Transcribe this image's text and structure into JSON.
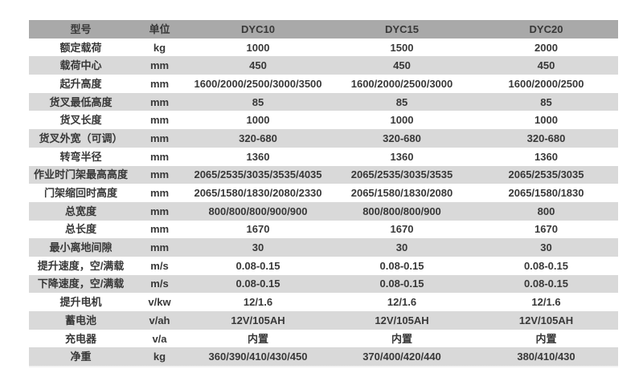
{
  "colors": {
    "header_bg": "#a9a9a9",
    "stripe_bg": "#d9d9d9",
    "row_bg": "#ffffff",
    "text": "#383838"
  },
  "table": {
    "headers": [
      "型号",
      "单位",
      "DYC10",
      "DYC15",
      "DYC20"
    ],
    "rows": [
      [
        "额定载荷",
        "kg",
        "1000",
        "1500",
        "2000"
      ],
      [
        "载荷中心",
        "mm",
        "450",
        "450",
        "450"
      ],
      [
        "起升高度",
        "mm",
        "1600/2000/2500/3000/3500",
        "1600/2000/2500/3000",
        "1600/2000/2500"
      ],
      [
        "货叉最低高度",
        "mm",
        "85",
        "85",
        "85"
      ],
      [
        "货叉长度",
        "mm",
        "1000",
        "1000",
        "1000"
      ],
      [
        "货叉外宽（可调）",
        "mm",
        "320-680",
        "320-680",
        "320-680"
      ],
      [
        "转弯半径",
        "mm",
        "1360",
        "1360",
        "1360"
      ],
      [
        "作业时门架最高高度",
        "mm",
        "2065/2535/3035/3535/4035",
        "2065/2535/3035/3535",
        "2065/2535/3035"
      ],
      [
        "门架缩回时高度",
        "mm",
        "2065/1580/1830/2080/2330",
        "2065/1580/1830/2080",
        "2065/1580/1830"
      ],
      [
        "总宽度",
        "mm",
        "800/800/800/900/900",
        "800/800/800/900",
        "800"
      ],
      [
        "总长度",
        "mm",
        "1670",
        "1670",
        "1670"
      ],
      [
        "最小离地间隙",
        "mm",
        "30",
        "30",
        "30"
      ],
      [
        "提升速度，空/满载",
        "m/s",
        "0.08-0.15",
        "0.08-0.15",
        "0.08-0.15"
      ],
      [
        "下降速度，空/满载",
        "m/s",
        "0.08-0.15",
        "0.08-0.15",
        "0.08-0.15"
      ],
      [
        "提升电机",
        "v/kw",
        "12/1.6",
        "12/1.6",
        "12/1.6"
      ],
      [
        "蓄电池",
        "v/ah",
        "12V/105AH",
        "12V/105AH",
        "12V/105AH"
      ],
      [
        "充电器",
        "v/a",
        "内置",
        "内置",
        "内置"
      ],
      [
        "净重",
        "kg",
        "360/390/410/430/450",
        "370/400/420/440",
        "380/410/430"
      ]
    ]
  }
}
